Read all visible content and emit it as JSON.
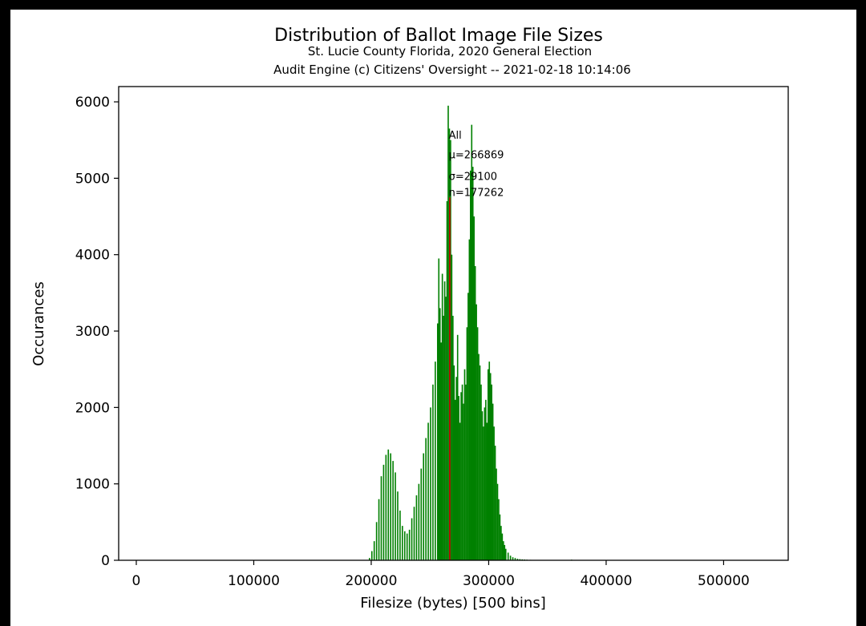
{
  "chart_data": {
    "type": "bar",
    "title": "Distribution of Ballot Image File Sizes",
    "subtitle_lines": [
      "St. Lucie County Florida, 2020 General Election",
      "Audit Engine (c) Citizens' Oversight -- 2021-02-18 10:14:06"
    ],
    "xlabel": "Filesize (bytes) [500 bins]",
    "ylabel": "Occurances",
    "xlim": [
      -15000,
      555000
    ],
    "ylim": [
      0,
      6200
    ],
    "xticks": [
      0,
      100000,
      200000,
      300000,
      400000,
      500000
    ],
    "xtick_labels": [
      "0",
      "100000",
      "200000",
      "300000",
      "400000",
      "500000"
    ],
    "yticks": [
      0,
      1000,
      2000,
      3000,
      4000,
      5000,
      6000
    ],
    "ytick_labels": [
      "0",
      "1000",
      "2000",
      "3000",
      "4000",
      "5000",
      "6000"
    ],
    "bar_color": "#008000",
    "mean_line_color": "#cc0000",
    "mean_line_x": 266869,
    "mean_line_height": 4750,
    "histogram": {
      "bin_width": 1100,
      "x": [
        198000,
        200000,
        202000,
        204000,
        206000,
        208000,
        210000,
        212000,
        214000,
        216000,
        218000,
        220000,
        222000,
        224000,
        226000,
        228000,
        230000,
        232000,
        234000,
        236000,
        238000,
        240000,
        242000,
        244000,
        246000,
        248000,
        250000,
        252000,
        254000,
        256000,
        257000,
        258000,
        259000,
        260000,
        261000,
        262000,
        263000,
        264000,
        265000,
        266000,
        267000,
        268000,
        269000,
        270000,
        271000,
        272000,
        273000,
        274000,
        275000,
        276000,
        277000,
        278000,
        279000,
        280000,
        281000,
        282000,
        283000,
        284000,
        285000,
        286000,
        287000,
        288000,
        289000,
        290000,
        291000,
        292000,
        293000,
        294000,
        295000,
        296000,
        297000,
        298000,
        299000,
        300000,
        301000,
        302000,
        303000,
        304000,
        305000,
        306000,
        307000,
        308000,
        309000,
        310000,
        311000,
        312000,
        313000,
        314000,
        316000,
        318000,
        320000,
        322000,
        324000,
        326000,
        328000,
        330000,
        332000,
        335000,
        338000,
        341000,
        344000,
        347000,
        350000,
        355000,
        360000,
        370000,
        380000
      ],
      "values": [
        30,
        120,
        250,
        500,
        800,
        1100,
        1250,
        1380,
        1450,
        1400,
        1300,
        1150,
        900,
        650,
        450,
        380,
        350,
        400,
        550,
        700,
        850,
        1000,
        1200,
        1400,
        1600,
        1800,
        2000,
        2300,
        2600,
        3100,
        3950,
        3300,
        2850,
        3750,
        3200,
        3650,
        3450,
        4700,
        5950,
        5650,
        5500,
        4000,
        3200,
        2550,
        2100,
        2400,
        2950,
        2150,
        1800,
        2200,
        2300,
        2050,
        2500,
        2300,
        3050,
        3500,
        4200,
        5100,
        5700,
        5150,
        4500,
        3850,
        3350,
        3050,
        2700,
        2550,
        2300,
        1950,
        1750,
        2000,
        2100,
        1800,
        2500,
        2600,
        2450,
        2300,
        2050,
        1750,
        1500,
        1200,
        1000,
        800,
        600,
        450,
        350,
        250,
        200,
        150,
        100,
        60,
        40,
        30,
        20,
        15,
        12,
        10,
        8,
        6,
        4,
        3,
        3,
        2,
        2,
        1,
        1,
        8,
        1
      ]
    },
    "stats_annotation": {
      "anchor_x": 266000,
      "lines": [
        {
          "text": "All",
          "y": 5520
        },
        {
          "text": "μ=266869",
          "y": 5260
        },
        {
          "text": "σ=29100",
          "y": 4980
        },
        {
          "text": "n=177262",
          "y": 4770
        }
      ]
    },
    "grid": false,
    "legend": "none"
  }
}
